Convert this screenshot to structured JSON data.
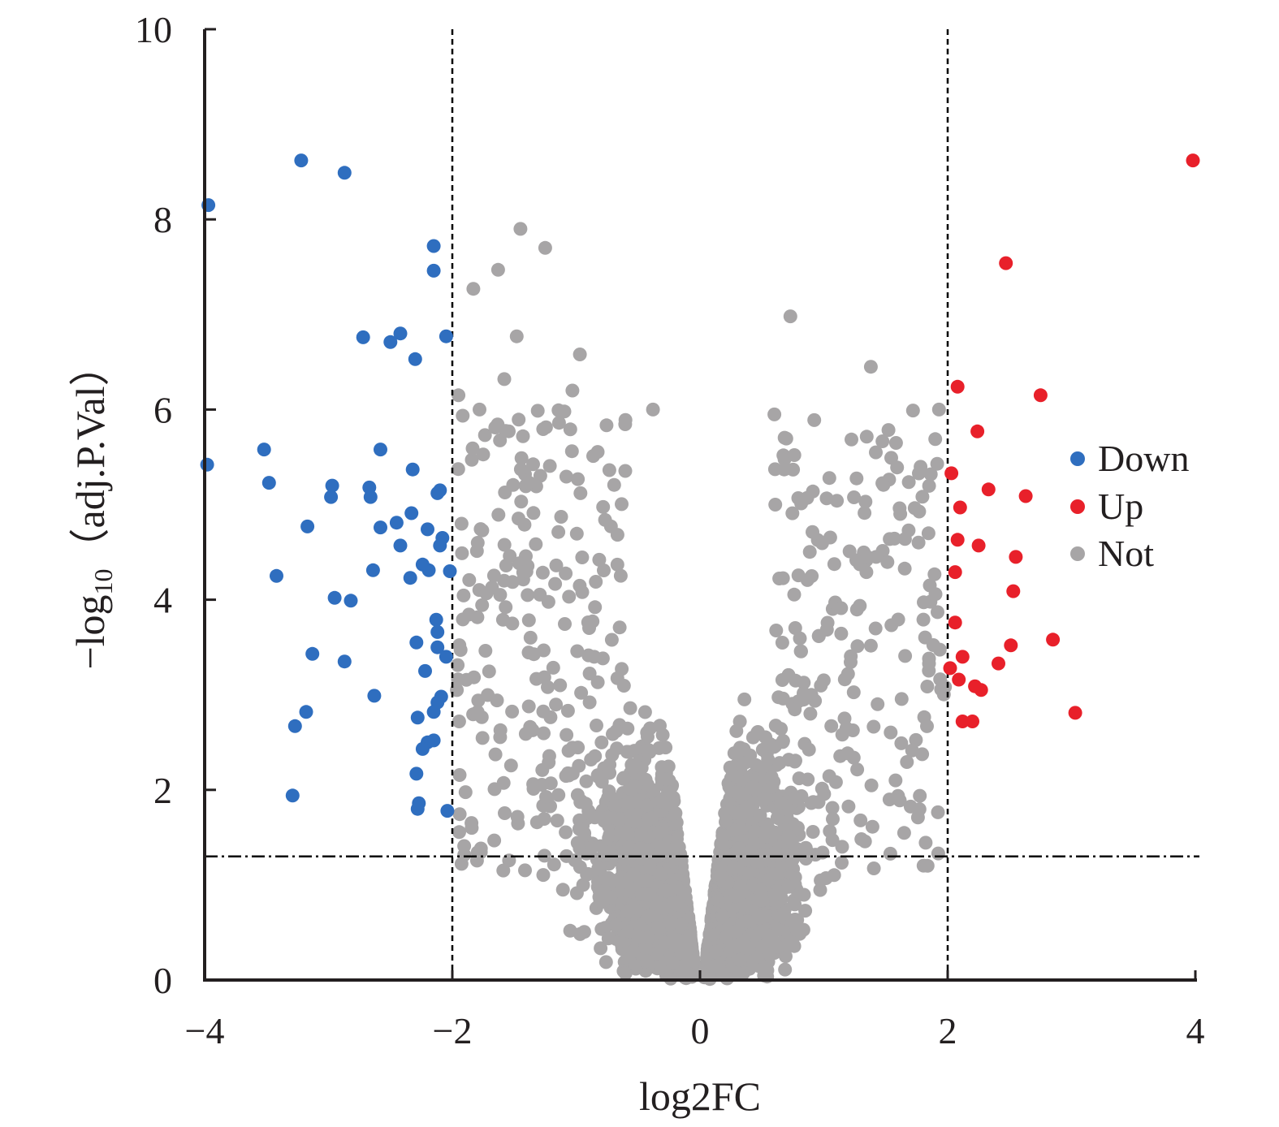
{
  "chart_data": {
    "type": "scatter",
    "xlabel": "log2FC",
    "ylabel": "−log",
    "ylabel_sub": "10",
    "ylabel_rest": "（adj.P.Val）",
    "xlim": [
      -4,
      4
    ],
    "ylim": [
      0,
      10
    ],
    "x_ticks": [
      "−4",
      "−2",
      "0",
      "2",
      "4"
    ],
    "y_ticks": [
      "0",
      "2",
      "4",
      "6",
      "8",
      "10"
    ],
    "thresholds": {
      "log2FC": [
        -2,
        2
      ],
      "neg_log10_adjP": 1.3
    },
    "legend_position": "right",
    "series": [
      {
        "name": "Down",
        "color": "#2f6ebf",
        "points": [
          [
            -3.97,
            8.15
          ],
          [
            -3.98,
            5.42
          ],
          [
            -3.22,
            8.62
          ],
          [
            -2.87,
            8.49
          ],
          [
            -2.15,
            7.72
          ],
          [
            -2.15,
            7.46
          ],
          [
            -2.72,
            6.76
          ],
          [
            -2.42,
            6.8
          ],
          [
            -2.5,
            6.71
          ],
          [
            -2.3,
            6.53
          ],
          [
            -2.05,
            6.77
          ],
          [
            -3.52,
            5.58
          ],
          [
            -2.58,
            5.58
          ],
          [
            -2.32,
            5.37
          ],
          [
            -2.1,
            5.15
          ],
          [
            -2.12,
            5.12
          ],
          [
            -3.48,
            5.23
          ],
          [
            -2.97,
            5.2
          ],
          [
            -2.67,
            5.18
          ],
          [
            -2.98,
            5.08
          ],
          [
            -2.66,
            5.08
          ],
          [
            -2.33,
            4.91
          ],
          [
            -2.45,
            4.81
          ],
          [
            -3.17,
            4.77
          ],
          [
            -2.58,
            4.76
          ],
          [
            -2.2,
            4.74
          ],
          [
            -2.08,
            4.65
          ],
          [
            -2.1,
            4.57
          ],
          [
            -2.42,
            4.57
          ],
          [
            -2.24,
            4.37
          ],
          [
            -2.19,
            4.31
          ],
          [
            -2.64,
            4.31
          ],
          [
            -2.02,
            4.3
          ],
          [
            -3.42,
            4.25
          ],
          [
            -2.34,
            4.23
          ],
          [
            -2.95,
            4.02
          ],
          [
            -2.82,
            3.99
          ],
          [
            -2.13,
            3.79
          ],
          [
            -2.12,
            3.66
          ],
          [
            -2.29,
            3.55
          ],
          [
            -2.12,
            3.5
          ],
          [
            -2.05,
            3.4
          ],
          [
            -3.13,
            3.43
          ],
          [
            -2.87,
            3.35
          ],
          [
            -2.22,
            3.25
          ],
          [
            -2.63,
            2.99
          ],
          [
            -2.09,
            2.98
          ],
          [
            -2.12,
            2.92
          ],
          [
            -2.15,
            2.82
          ],
          [
            -3.18,
            2.82
          ],
          [
            -2.28,
            2.76
          ],
          [
            -3.27,
            2.67
          ],
          [
            -2.15,
            2.52
          ],
          [
            -2.2,
            2.5
          ],
          [
            -2.24,
            2.43
          ],
          [
            -2.29,
            2.17
          ],
          [
            -3.29,
            1.94
          ],
          [
            -2.27,
            1.86
          ],
          [
            -2.28,
            1.8
          ],
          [
            -2.04,
            1.78
          ]
        ]
      },
      {
        "name": "Up",
        "color": "#e8202a",
        "points": [
          [
            3.98,
            8.62
          ],
          [
            2.47,
            7.54
          ],
          [
            2.08,
            6.24
          ],
          [
            2.75,
            6.15
          ],
          [
            2.24,
            5.77
          ],
          [
            2.03,
            5.33
          ],
          [
            2.33,
            5.16
          ],
          [
            2.63,
            5.09
          ],
          [
            2.1,
            4.97
          ],
          [
            2.08,
            4.63
          ],
          [
            2.25,
            4.57
          ],
          [
            2.55,
            4.45
          ],
          [
            2.06,
            4.29
          ],
          [
            2.53,
            4.09
          ],
          [
            2.06,
            3.76
          ],
          [
            2.85,
            3.58
          ],
          [
            2.51,
            3.52
          ],
          [
            2.12,
            3.4
          ],
          [
            2.41,
            3.33
          ],
          [
            2.02,
            3.28
          ],
          [
            2.09,
            3.16
          ],
          [
            2.22,
            3.09
          ],
          [
            2.27,
            3.05
          ],
          [
            3.03,
            2.81
          ],
          [
            2.12,
            2.72
          ],
          [
            2.2,
            2.72
          ]
        ]
      },
      {
        "name": "Not",
        "color": "#a7a5a6",
        "distribution": "dense volcano-shaped cloud of non-significant genes, |log2FC| < 2 or -log10(adj.P.Val) < 1.3"
      }
    ]
  }
}
